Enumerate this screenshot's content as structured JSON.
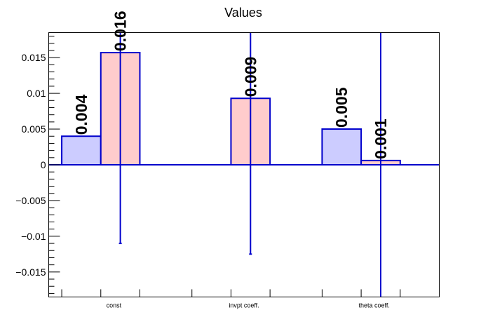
{
  "chart_data": {
    "type": "bar",
    "title": "Values",
    "xlabel": "",
    "ylabel": "",
    "categories": [
      "const",
      "invpt coeff.",
      "theta coeff."
    ],
    "ylim": [
      -0.0185,
      0.0185
    ],
    "yticks": [
      -0.015,
      -0.01,
      -0.005,
      0,
      0.005,
      0.01,
      0.015
    ],
    "ytick_labels": [
      "−0.015",
      "−0.01",
      "−0.005",
      "0",
      "0.005",
      "0.01",
      "0.015"
    ],
    "grid": false,
    "series": [
      {
        "color_fill": "#ccccff",
        "color_edge": "#0000cc",
        "values": [
          0.004,
          null,
          0.005
        ],
        "labels": [
          "0.004",
          null,
          "0.005"
        ],
        "errors": [
          null,
          null,
          null
        ]
      },
      {
        "color_fill": "#ffcccc",
        "color_edge": "#0000cc",
        "values": [
          0.0157,
          0.0093,
          0.0006
        ],
        "labels": [
          "0.016",
          "0.009",
          "0.001"
        ],
        "errors": [
          [
            -0.011,
            0.0185
          ],
          [
            -0.0125,
            0.0185
          ],
          [
            -0.0185,
            0.0185
          ]
        ]
      }
    ]
  }
}
